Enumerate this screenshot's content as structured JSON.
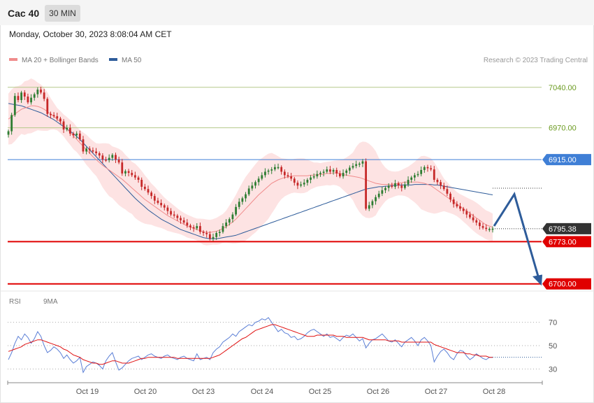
{
  "header": {
    "instrument": "Cac 40",
    "timeframe": "30 MIN"
  },
  "datetime": "Monday, October 30, 2023 8:08:04 AM CET",
  "legend": {
    "ma20": {
      "label": "MA 20 + Bollinger Bands",
      "color": "#f08c8c"
    },
    "ma50": {
      "label": "MA 50",
      "color": "#2e5c9a"
    }
  },
  "credit": "Research © 2023 Trading Central",
  "rsi_legend": {
    "rsi": {
      "label": "RSI",
      "color": "#5b7fd6"
    },
    "ma9": {
      "label": "9MA",
      "color": "#e01010"
    }
  },
  "colors": {
    "up": "#2e7d32",
    "down": "#c62828",
    "bands": "#fde3e3",
    "target": "#6a9a1f",
    "pivot": "#3f7fd6",
    "support": "#e00000",
    "arrow": "#2e5c9a"
  },
  "chart_data": [
    {
      "type": "candlestick",
      "x_ticks": [
        "Oct 19",
        "Oct 20",
        "Oct 23",
        "Oct 24",
        "Oct 25",
        "Oct 26",
        "Oct 27",
        "Oct 28"
      ],
      "ylim": [
        6690,
        7070
      ],
      "levels": [
        {
          "label": "7040.00",
          "value": 7040,
          "kind": "target"
        },
        {
          "label": "6970.00",
          "value": 6970,
          "kind": "target"
        },
        {
          "label": "6915.00",
          "value": 6915,
          "kind": "pivot"
        },
        {
          "label": "6795.38",
          "value": 6795.38,
          "kind": "last"
        },
        {
          "label": "6773.00",
          "value": 6773,
          "kind": "support"
        },
        {
          "label": "6700.00",
          "value": 6700,
          "kind": "support"
        }
      ],
      "last_price": 6795.38,
      "close": [
        6964,
        6992,
        7025,
        7018,
        7031,
        7024,
        7014,
        7022,
        7028,
        7036,
        7031,
        7020,
        6994,
        6992,
        6990,
        6986,
        6981,
        6967,
        6970,
        6960,
        6957,
        6960,
        6950,
        6929,
        6934,
        6931,
        6929,
        6926,
        6922,
        6915,
        6914,
        6918,
        6923,
        6915,
        6910,
        6891,
        6895,
        6892,
        6888,
        6884,
        6880,
        6868,
        6864,
        6858,
        6852,
        6844,
        6840,
        6836,
        6832,
        6826,
        6820,
        6818,
        6814,
        6810,
        6806,
        6801,
        6798,
        6796,
        6800,
        6790,
        6788,
        6786,
        6778,
        6781,
        6788,
        6790,
        6800,
        6806,
        6812,
        6820,
        6833,
        6842,
        6848,
        6855,
        6865,
        6870,
        6876,
        6882,
        6888,
        6894,
        6896,
        6898,
        6902,
        6902,
        6894,
        6888,
        6886,
        6882,
        6875,
        6870,
        6872,
        6875,
        6880,
        6884,
        6886,
        6890,
        6892,
        6894,
        6898,
        6894,
        6897,
        6891,
        6886,
        6892,
        6896,
        6901,
        6904,
        6907,
        6908,
        6912,
        6830,
        6836,
        6843,
        6850,
        6856,
        6862,
        6866,
        6870,
        6868,
        6874,
        6870,
        6866,
        6872,
        6880,
        6884,
        6888,
        6890,
        6897,
        6902,
        6900,
        6898,
        6880,
        6876,
        6870,
        6864,
        6856,
        6846,
        6838,
        6834,
        6830,
        6826,
        6820,
        6815,
        6810,
        6806,
        6800,
        6797,
        6795,
        6795,
        6795.38
      ],
      "ma20": [
        6985,
        6989,
        6994,
        6998,
        7002,
        7004,
        7006,
        7008,
        7008,
        7007,
        7005,
        7002,
        6998,
        6994,
        6990,
        6985,
        6980,
        6974,
        6968,
        6962,
        6956,
        6950,
        6944,
        6938,
        6932,
        6926,
        6920,
        6915,
        6910,
        6905,
        6901,
        6897,
        6893,
        6889,
        6885,
        6881,
        6876,
        6871,
        6866,
        6861,
        6856,
        6851,
        6846,
        6842,
        6838,
        6834,
        6830,
        6826,
        6822,
        6818,
        6815,
        6812,
        6809,
        6806,
        6803,
        6800,
        6798,
        6796,
        6794,
        6792,
        6790,
        6789,
        6789,
        6790,
        6791,
        6793,
        6796,
        6799,
        6803,
        6807,
        6812,
        6818,
        6824,
        6830,
        6836,
        6842,
        6848,
        6854,
        6859,
        6864,
        6869,
        6874,
        6877,
        6880,
        6882,
        6884,
        6885,
        6886,
        6887,
        6887,
        6887,
        6887,
        6887,
        6888,
        6888,
        6889,
        6889,
        6890,
        6891,
        6891,
        6892,
        6892,
        6891,
        6889,
        6888,
        6887,
        6886,
        6885,
        6884,
        6882,
        6880,
        6878,
        6876,
        6874,
        6873,
        6872,
        6872,
        6872,
        6872,
        6873,
        6874,
        6875,
        6876,
        6876,
        6876,
        6876,
        6876,
        6875,
        6874,
        6872,
        6870,
        6866,
        6862,
        6858,
        6854,
        6850,
        6846,
        6842,
        6838,
        6834,
        6830,
        6826,
        6822,
        6818,
        6814,
        6810,
        6806,
        6802,
        6800,
        6798
      ],
      "ma50": [
        7012,
        7011,
        7010,
        7009,
        7008,
        7006,
        7004,
        7002,
        7000,
        6998,
        6996,
        6993,
        6990,
        6987,
        6984,
        6980,
        6976,
        6972,
        6968,
        6964,
        6960,
        6955,
        6950,
        6944,
        6938,
        6932,
        6926,
        6920,
        6914,
        6908,
        6902,
        6896,
        6890,
        6884,
        6878,
        6872,
        6866,
        6860,
        6854,
        6848,
        6843,
        6838,
        6833,
        6828,
        6824,
        6820,
        6816,
        6812,
        6809,
        6806,
        6803,
        6800,
        6797,
        6794,
        6792,
        6790,
        6788,
        6786,
        6784,
        6782,
        6780,
        6779,
        6778,
        6778,
        6778,
        6779,
        6780,
        6781,
        6782,
        6783,
        6784,
        6786,
        6788,
        6790,
        6792,
        6794,
        6796,
        6798,
        6800,
        6802,
        6804,
        6806,
        6808,
        6810,
        6812,
        6814,
        6816,
        6818,
        6820,
        6822,
        6824,
        6826,
        6828,
        6830,
        6832,
        6834,
        6836,
        6838,
        6840,
        6842,
        6844,
        6846,
        6848,
        6850,
        6852,
        6854,
        6856,
        6858,
        6860,
        6862,
        6864,
        6865,
        6866,
        6867,
        6868,
        6868,
        6869,
        6869,
        6870,
        6870,
        6871,
        6871,
        6871,
        6871,
        6871,
        6872,
        6872,
        6872,
        6872,
        6872,
        6872,
        6871,
        6871,
        6870,
        6869,
        6868,
        6867,
        6866,
        6865,
        6864,
        6863,
        6862,
        6861,
        6860,
        6859,
        6858,
        6857,
        6856,
        6855,
        6854
      ],
      "projection": {
        "points": [
          [
            0,
            6800
          ],
          [
            1,
            6860
          ],
          [
            2,
            6700
          ]
        ]
      }
    },
    {
      "type": "line",
      "title": "RSI",
      "y_ticks": [
        70,
        50,
        30
      ],
      "ylim": [
        20,
        80
      ],
      "x_ticks": [
        "Oct 19",
        "Oct 20",
        "Oct 23",
        "Oct 24",
        "Oct 25",
        "Oct 26",
        "Oct 27",
        "Oct 28"
      ],
      "series": [
        {
          "name": "RSI",
          "values": [
            38,
            44,
            52,
            58,
            55,
            60,
            57,
            52,
            56,
            62,
            58,
            50,
            44,
            46,
            49,
            47,
            44,
            39,
            42,
            38,
            35,
            37,
            40,
            27,
            32,
            34,
            36,
            35,
            33,
            30,
            37,
            41,
            44,
            36,
            29,
            31,
            34,
            37,
            39,
            40,
            41,
            38,
            40,
            42,
            43,
            41,
            40,
            39,
            41,
            42,
            40,
            39,
            38,
            40,
            41,
            39,
            38,
            37,
            43,
            38,
            39,
            40,
            38,
            44,
            47,
            49,
            53,
            55,
            57,
            60,
            58,
            62,
            64,
            66,
            68,
            67,
            70,
            71,
            73,
            72,
            74,
            70,
            66,
            62,
            64,
            61,
            60,
            57,
            58,
            55,
            56,
            58,
            61,
            63,
            64,
            62,
            60,
            58,
            60,
            57,
            58,
            56,
            54,
            57,
            59,
            58,
            60,
            57,
            54,
            56,
            48,
            52,
            55,
            56,
            58,
            60,
            57,
            54,
            53,
            55,
            52,
            49,
            53,
            55,
            57,
            54,
            50,
            55,
            57,
            54,
            50,
            36,
            41,
            45,
            47,
            44,
            40,
            38,
            43,
            46,
            45,
            41,
            38,
            40,
            43,
            41,
            39,
            38,
            40,
            40
          ]
        },
        {
          "name": "9MA",
          "values": [
            45,
            46,
            47,
            48,
            49,
            51,
            52,
            53,
            54,
            55,
            55,
            54,
            53,
            52,
            51,
            50,
            49,
            47,
            46,
            44,
            42,
            41,
            40,
            38,
            37,
            36,
            35,
            35,
            34,
            34,
            35,
            36,
            37,
            37,
            36,
            35,
            35,
            35,
            36,
            37,
            38,
            39,
            39,
            40,
            40,
            40,
            40,
            40,
            40,
            40,
            40,
            40,
            39,
            39,
            39,
            39,
            39,
            39,
            39,
            39,
            39,
            39,
            39,
            40,
            41,
            42,
            44,
            46,
            48,
            50,
            52,
            54,
            56,
            57,
            59,
            61,
            63,
            64,
            65,
            66,
            67,
            68,
            68,
            67,
            66,
            65,
            64,
            63,
            62,
            61,
            60,
            59,
            58,
            58,
            58,
            59,
            59,
            59,
            59,
            59,
            59,
            58,
            58,
            58,
            57,
            57,
            57,
            57,
            57,
            57,
            56,
            55,
            55,
            55,
            55,
            55,
            55,
            54,
            54,
            54,
            54,
            53,
            53,
            53,
            53,
            53,
            53,
            53,
            53,
            53,
            53,
            51,
            50,
            49,
            48,
            47,
            46,
            45,
            44,
            44,
            44,
            43,
            43,
            42,
            42,
            41,
            41,
            41,
            40,
            40
          ]
        }
      ]
    }
  ]
}
